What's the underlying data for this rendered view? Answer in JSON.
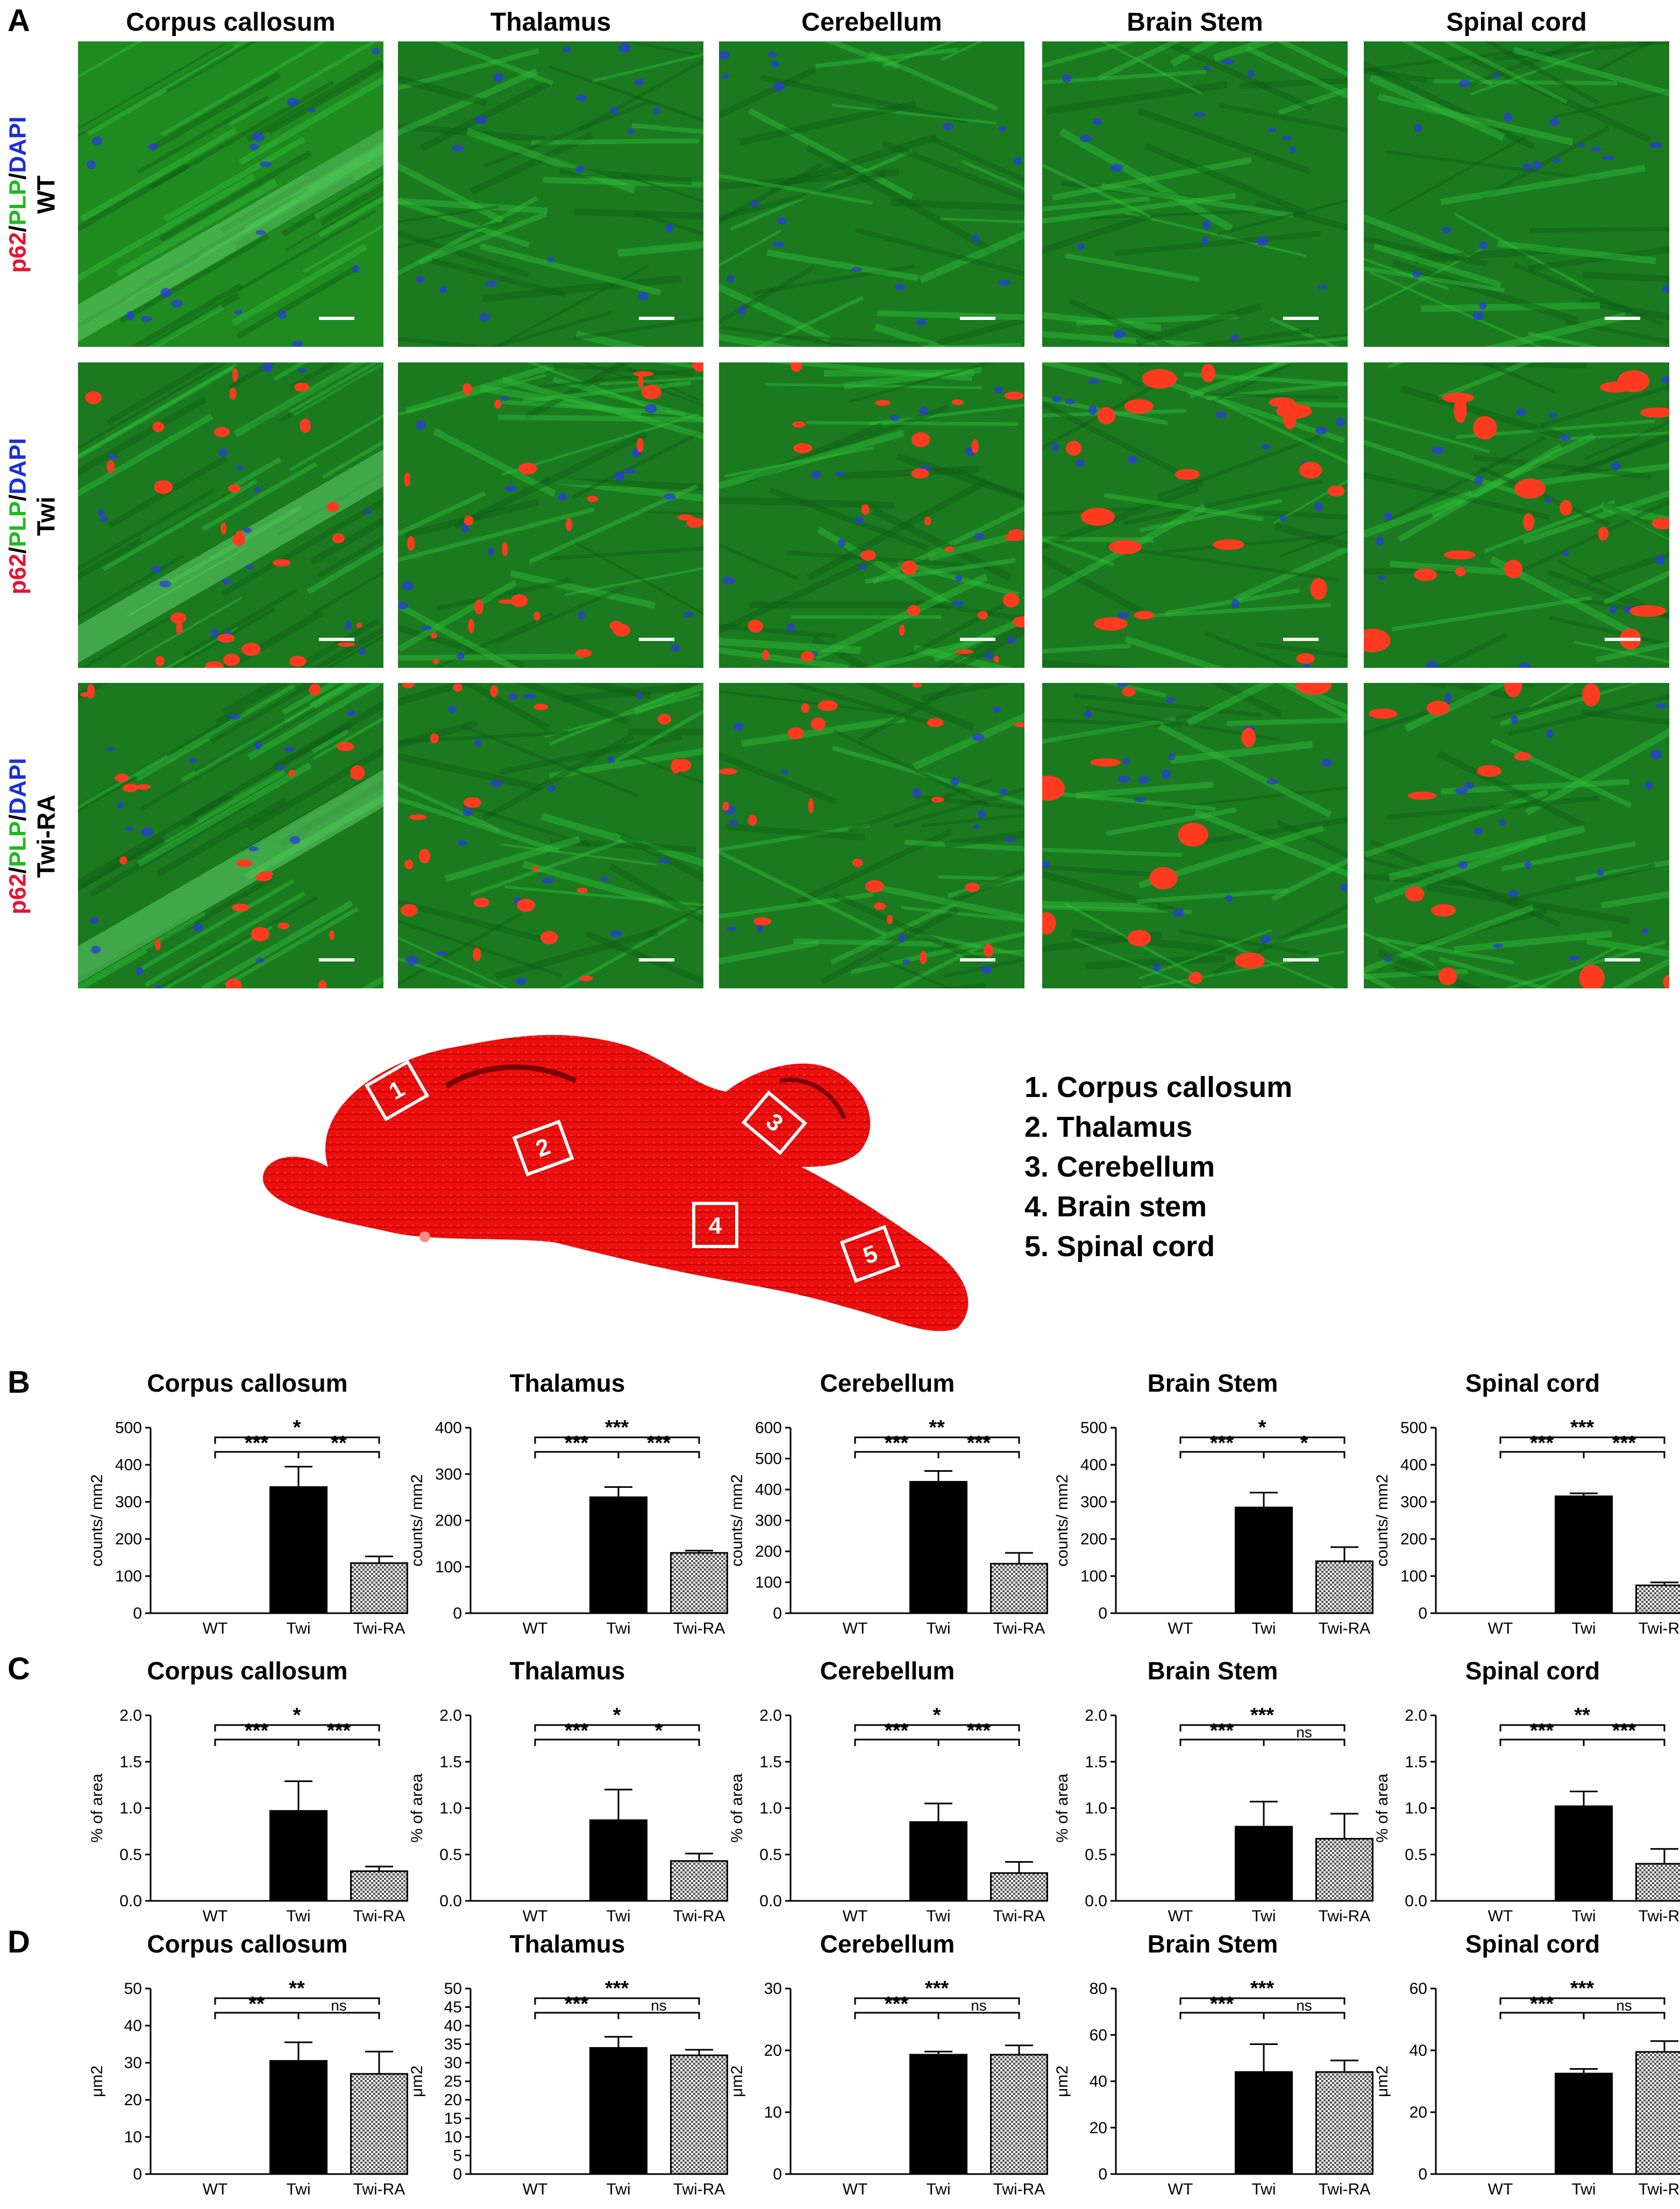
{
  "panel_labels": [
    "A",
    "B",
    "C",
    "D"
  ],
  "columns": [
    "Corpus callosum",
    "Thalamus",
    "Cerebellum",
    "Brain Stem",
    "Spinal cord"
  ],
  "rows": [
    {
      "stain_p62": "p62",
      "slash1": "/",
      "stain_plp": "PLP",
      "slash2": "/",
      "stain_dapi": "DAPI",
      "genotype": "WT"
    },
    {
      "stain_p62": "p62",
      "slash1": "/",
      "stain_plp": "PLP",
      "slash2": "/",
      "stain_dapi": "DAPI",
      "genotype": "Twi"
    },
    {
      "stain_p62": "p62",
      "slash1": "/",
      "stain_plp": "PLP",
      "slash2": "/",
      "stain_dapi": "DAPI",
      "genotype": "Twi-RA"
    }
  ],
  "brain_box_numbers": [
    "1",
    "2",
    "3",
    "4",
    "5"
  ],
  "legend": [
    "1. Corpus callosum",
    "2. Thalamus",
    "3. Cerebellum",
    "4. Brain stem",
    "5. Spinal cord"
  ],
  "colors": {
    "p62": "#e8122e",
    "plp": "#1fb81f",
    "dapi": "#1a2ed6",
    "bar_twi": "#000000",
    "bar_twira": "checkered gray"
  },
  "chart_data": [
    {
      "panel": "B",
      "type": "bar",
      "title": "Corpus callosum",
      "ylabel": "counts/ mm2",
      "ylim": [
        0,
        500
      ],
      "yticks": [
        0,
        100,
        200,
        300,
        400,
        500
      ],
      "categories": [
        "WT",
        "Twi",
        "Twi-RA"
      ],
      "values": [
        0,
        340,
        135
      ],
      "errors": [
        0,
        55,
        18
      ],
      "sig": {
        "top": "*",
        "left": "***",
        "right": "**"
      }
    },
    {
      "panel": "B",
      "type": "bar",
      "title": "Thalamus",
      "ylabel": "counts/ mm2",
      "ylim": [
        0,
        400
      ],
      "yticks": [
        0,
        100,
        200,
        300,
        400
      ],
      "categories": [
        "WT",
        "Twi",
        "Twi-RA"
      ],
      "values": [
        0,
        250,
        130
      ],
      "errors": [
        0,
        22,
        5
      ],
      "sig": {
        "top": "***",
        "left": "***",
        "right": "***"
      }
    },
    {
      "panel": "B",
      "type": "bar",
      "title": "Cerebellum",
      "ylabel": "counts/ mm2",
      "ylim": [
        0,
        600
      ],
      "yticks": [
        0,
        100,
        200,
        300,
        400,
        500,
        600
      ],
      "categories": [
        "WT",
        "Twi",
        "Twi-RA"
      ],
      "values": [
        0,
        425,
        160
      ],
      "errors": [
        0,
        35,
        35
      ],
      "sig": {
        "top": "**",
        "left": "***",
        "right": "***"
      }
    },
    {
      "panel": "B",
      "type": "bar",
      "title": "Brain Stem",
      "ylabel": "counts/ mm2",
      "ylim": [
        0,
        500
      ],
      "yticks": [
        0,
        100,
        200,
        300,
        400,
        500
      ],
      "categories": [
        "WT",
        "Twi",
        "Twi-RA"
      ],
      "values": [
        0,
        285,
        140
      ],
      "errors": [
        0,
        40,
        38
      ],
      "sig": {
        "top": "*",
        "left": "***",
        "right": "*"
      }
    },
    {
      "panel": "B",
      "type": "bar",
      "title": "Spinal cord",
      "ylabel": "counts/ mm2",
      "ylim": [
        0,
        500
      ],
      "yticks": [
        0,
        100,
        200,
        300,
        400,
        500
      ],
      "categories": [
        "WT",
        "Twi",
        "Twi-RA"
      ],
      "values": [
        0,
        315,
        75
      ],
      "errors": [
        0,
        8,
        8
      ],
      "sig": {
        "top": "***",
        "left": "***",
        "right": "***"
      }
    },
    {
      "panel": "C",
      "type": "bar",
      "title": "Corpus callosum",
      "ylabel": "% of area",
      "ylim": [
        0,
        2
      ],
      "yticks": [
        0,
        0.5,
        1,
        1.5,
        2
      ],
      "categories": [
        "WT",
        "Twi",
        "Twi-RA"
      ],
      "values": [
        0,
        0.97,
        0.32
      ],
      "errors": [
        0,
        0.32,
        0.05
      ],
      "sig": {
        "top": "*",
        "left": "***",
        "right": "***"
      }
    },
    {
      "panel": "C",
      "type": "bar",
      "title": "Thalamus",
      "ylabel": "% of area",
      "ylim": [
        0,
        2
      ],
      "yticks": [
        0,
        0.5,
        1,
        1.5,
        2
      ],
      "categories": [
        "WT",
        "Twi",
        "Twi-RA"
      ],
      "values": [
        0,
        0.87,
        0.43
      ],
      "errors": [
        0,
        0.33,
        0.08
      ],
      "sig": {
        "top": "*",
        "left": "***",
        "right": "*"
      }
    },
    {
      "panel": "C",
      "type": "bar",
      "title": "Cerebellum",
      "ylabel": "% of area",
      "ylim": [
        0,
        2
      ],
      "yticks": [
        0,
        0.5,
        1,
        1.5,
        2
      ],
      "categories": [
        "WT",
        "Twi",
        "Twi-RA"
      ],
      "values": [
        0,
        0.85,
        0.3
      ],
      "errors": [
        0,
        0.2,
        0.12
      ],
      "sig": {
        "top": "*",
        "left": "***",
        "right": "***"
      }
    },
    {
      "panel": "C",
      "type": "bar",
      "title": "Brain Stem",
      "ylabel": "% of area",
      "ylim": [
        0,
        2
      ],
      "yticks": [
        0,
        0.5,
        1,
        1.5,
        2
      ],
      "categories": [
        "WT",
        "Twi",
        "Twi-RA"
      ],
      "values": [
        0,
        0.8,
        0.67
      ],
      "errors": [
        0,
        0.27,
        0.27
      ],
      "sig": {
        "top": "***",
        "left": "***",
        "right": "ns"
      }
    },
    {
      "panel": "C",
      "type": "bar",
      "title": "Spinal cord",
      "ylabel": "% of area",
      "ylim": [
        0,
        2
      ],
      "yticks": [
        0,
        0.5,
        1,
        1.5,
        2
      ],
      "categories": [
        "WT",
        "Twi",
        "Twi-RA"
      ],
      "values": [
        0,
        1.02,
        0.4
      ],
      "errors": [
        0,
        0.16,
        0.16
      ],
      "sig": {
        "top": "**",
        "left": "***",
        "right": "***"
      }
    },
    {
      "panel": "D",
      "type": "bar",
      "title": "Corpus callosum",
      "ylabel": "μm2",
      "ylim": [
        0,
        50
      ],
      "yticks": [
        0,
        10,
        20,
        30,
        40,
        50
      ],
      "categories": [
        "WT",
        "Twi",
        "Twi-RA"
      ],
      "values": [
        0,
        30.5,
        27
      ],
      "errors": [
        0,
        5,
        6
      ],
      "sig": {
        "top": "**",
        "left": "**",
        "right": "ns"
      }
    },
    {
      "panel": "D",
      "type": "bar",
      "title": "Thalamus",
      "ylabel": "μm2",
      "ylim": [
        0,
        50
      ],
      "yticks": [
        0,
        5,
        10,
        15,
        20,
        25,
        30,
        35,
        40,
        45,
        50
      ],
      "categories": [
        "WT",
        "Twi",
        "Twi-RA"
      ],
      "values": [
        0,
        34,
        32
      ],
      "errors": [
        0,
        3,
        1.5
      ],
      "sig": {
        "top": "***",
        "left": "***",
        "right": "ns"
      }
    },
    {
      "panel": "D",
      "type": "bar",
      "title": "Cerebellum",
      "ylabel": "μm2",
      "ylim": [
        0,
        30
      ],
      "yticks": [
        0,
        10,
        20,
        30
      ],
      "categories": [
        "WT",
        "Twi",
        "Twi-RA"
      ],
      "values": [
        0,
        19.3,
        19.3
      ],
      "errors": [
        0,
        0.5,
        1.5
      ],
      "sig": {
        "top": "***",
        "left": "***",
        "right": "ns"
      }
    },
    {
      "panel": "D",
      "type": "bar",
      "title": "Brain Stem",
      "ylabel": "μm2",
      "ylim": [
        0,
        80
      ],
      "yticks": [
        0,
        20,
        40,
        60,
        80
      ],
      "categories": [
        "WT",
        "Twi",
        "Twi-RA"
      ],
      "values": [
        0,
        44,
        44
      ],
      "errors": [
        0,
        12,
        5
      ],
      "sig": {
        "top": "***",
        "left": "***",
        "right": "ns"
      }
    },
    {
      "panel": "D",
      "type": "bar",
      "title": "Spinal cord",
      "ylabel": "μm2",
      "ylim": [
        0,
        60
      ],
      "yticks": [
        0,
        20,
        40,
        60
      ],
      "categories": [
        "WT",
        "Twi",
        "Twi-RA"
      ],
      "values": [
        0,
        32.5,
        39.5
      ],
      "errors": [
        0,
        1.5,
        3.5
      ],
      "sig": {
        "top": "***",
        "left": "***",
        "right": "ns"
      }
    }
  ]
}
